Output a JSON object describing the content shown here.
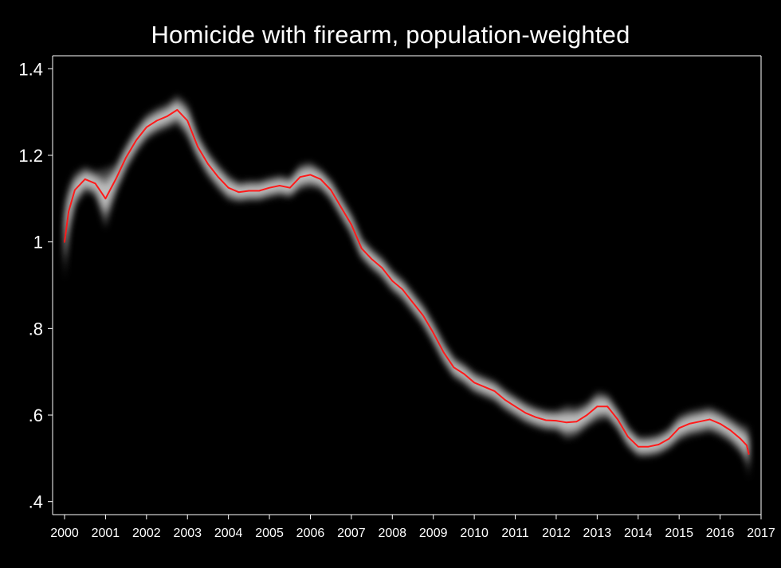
{
  "chart_data": {
    "type": "line",
    "title": "Homicide with firearm, population-weighted",
    "xlabel": "",
    "ylabel": "",
    "xlim": [
      2000,
      2017
    ],
    "ylim": [
      0.37,
      1.43
    ],
    "x_ticks": [
      2000,
      2001,
      2002,
      2003,
      2004,
      2005,
      2006,
      2007,
      2008,
      2009,
      2010,
      2011,
      2012,
      2013,
      2014,
      2015,
      2016,
      2017
    ],
    "x_tick_labels": [
      "2000",
      "2001",
      "2002",
      "2003",
      "2004",
      "2005",
      "2006",
      "2007",
      "2008",
      "2009",
      "2010",
      "2011",
      "2012",
      "2013",
      "2014",
      "2015",
      "2016",
      "2017"
    ],
    "y_ticks": [
      0.4,
      0.6,
      0.8,
      1.0,
      1.2,
      1.4
    ],
    "y_tick_labels": [
      ".4",
      ".6",
      ".8",
      "1",
      "1.2",
      "1.4"
    ],
    "grid": false,
    "legend": "none",
    "colors": {
      "background": "#000000",
      "line": "#ff1a1a",
      "band": "#ffffff",
      "axis": "#ffffff"
    },
    "series": [
      {
        "x": [
          2000.0,
          2000.1,
          2000.25,
          2000.5,
          2000.75,
          2001.0,
          2001.25,
          2001.5,
          2001.75,
          2002.0,
          2002.25,
          2002.5,
          2002.75,
          2003.0,
          2003.25,
          2003.5,
          2003.75,
          2004.0,
          2004.25,
          2004.5,
          2004.75,
          2005.0,
          2005.25,
          2005.5,
          2005.75,
          2006.0,
          2006.25,
          2006.5,
          2006.75,
          2007.0,
          2007.25,
          2007.5,
          2007.75,
          2008.0,
          2008.25,
          2008.5,
          2008.75,
          2009.0,
          2009.25,
          2009.5,
          2009.75,
          2010.0,
          2010.25,
          2010.5,
          2010.75,
          2011.0,
          2011.25,
          2011.5,
          2011.75,
          2012.0,
          2012.25,
          2012.5,
          2012.75,
          2013.0,
          2013.25,
          2013.5,
          2013.75,
          2014.0,
          2014.25,
          2014.5,
          2014.75,
          2015.0,
          2015.25,
          2015.5,
          2015.75,
          2016.0,
          2016.25,
          2016.5,
          2016.65,
          2016.7
        ],
        "y": [
          1.0,
          1.07,
          1.12,
          1.145,
          1.135,
          1.1,
          1.145,
          1.195,
          1.235,
          1.265,
          1.28,
          1.29,
          1.305,
          1.28,
          1.22,
          1.18,
          1.15,
          1.125,
          1.115,
          1.118,
          1.118,
          1.125,
          1.13,
          1.125,
          1.15,
          1.155,
          1.145,
          1.12,
          1.08,
          1.04,
          0.985,
          0.96,
          0.94,
          0.91,
          0.89,
          0.86,
          0.83,
          0.79,
          0.745,
          0.71,
          0.695,
          0.675,
          0.665,
          0.655,
          0.635,
          0.62,
          0.605,
          0.595,
          0.588,
          0.587,
          0.583,
          0.585,
          0.6,
          0.62,
          0.62,
          0.59,
          0.55,
          0.527,
          0.527,
          0.532,
          0.545,
          0.57,
          0.58,
          0.585,
          0.59,
          0.58,
          0.565,
          0.545,
          0.53,
          0.51
        ],
        "band_halfwidth": [
          0.09,
          0.06,
          0.04,
          0.03,
          0.03,
          0.07,
          0.035,
          0.03,
          0.03,
          0.03,
          0.03,
          0.03,
          0.035,
          0.04,
          0.03,
          0.03,
          0.03,
          0.03,
          0.025,
          0.025,
          0.025,
          0.025,
          0.025,
          0.025,
          0.03,
          0.03,
          0.025,
          0.025,
          0.025,
          0.025,
          0.025,
          0.025,
          0.025,
          0.025,
          0.025,
          0.025,
          0.025,
          0.025,
          0.025,
          0.025,
          0.025,
          0.025,
          0.025,
          0.025,
          0.025,
          0.025,
          0.025,
          0.025,
          0.025,
          0.025,
          0.04,
          0.035,
          0.03,
          0.035,
          0.03,
          0.025,
          0.025,
          0.025,
          0.025,
          0.025,
          0.025,
          0.03,
          0.03,
          0.03,
          0.03,
          0.03,
          0.03,
          0.035,
          0.045,
          0.06
        ]
      }
    ]
  }
}
